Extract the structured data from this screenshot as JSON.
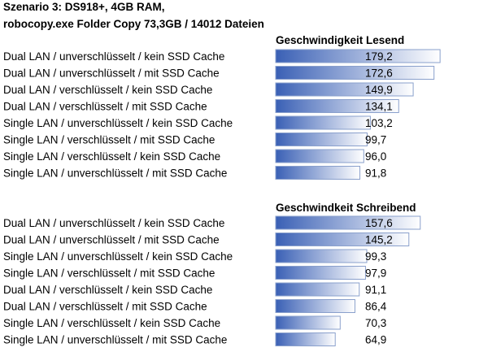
{
  "header": {
    "line1": "Szenario 3: DS918+, 4GB RAM,",
    "line2": "robocopy.exe Folder Copy 73,3GB / 14012 Dateien"
  },
  "colors": {
    "bar_fill_start": "#3a60b5",
    "bar_fill_end": "#ffffff",
    "bar_stroke": "#8aa0cc"
  },
  "chart_data": [
    {
      "type": "bar",
      "orientation": "horizontal",
      "title": "Geschwindigkeit Lesend",
      "categories": [
        "Dual LAN / unverschlüsselt / kein SSD Cache",
        "Dual LAN / unverschlüsselt / mit SSD Cache",
        "Dual LAN / verschlüsselt / kein SSD Cache",
        "Dual LAN / verschlüsselt / mit SSD Cache",
        "Single LAN / unverschlüsselt / kein SSD Cache",
        "Single LAN / verschlüsselt / mit SSD Cache",
        "Single LAN / verschlüsselt / kein SSD Cache",
        "Single LAN / unverschlüsselt / mit SSD Cache"
      ],
      "values": [
        179.2,
        172.6,
        149.9,
        134.1,
        103.2,
        99.7,
        96.0,
        91.8
      ],
      "value_labels": [
        "179,2",
        "172,6",
        "149,9",
        "134,1",
        "103,2",
        "99,7",
        "96,0",
        "91,8"
      ]
    },
    {
      "type": "bar",
      "orientation": "horizontal",
      "title": "Geschwindkeit Schreibend",
      "categories": [
        "Dual LAN / unverschlüsselt / kein SSD Cache",
        "Dual LAN / unverschlüsselt / mit SSD Cache",
        "Single LAN / unverschlüsselt / kein SSD Cache",
        "Single LAN / verschlüsselt / mit SSD Cache",
        "Dual LAN / verschlüsselt / kein SSD Cache",
        "Dual LAN / verschlüsselt / mit SSD Cache",
        "Single LAN / verschlüsselt / kein SSD Cache",
        "Single LAN / unverschlüsselt / mit SSD Cache"
      ],
      "values": [
        157.6,
        145.2,
        99.3,
        97.9,
        91.1,
        86.4,
        70.3,
        64.9
      ],
      "value_labels": [
        "157,6",
        "145,2",
        "99,3",
        "97,9",
        "91,1",
        "86,4",
        "70,3",
        "64,9"
      ]
    }
  ]
}
